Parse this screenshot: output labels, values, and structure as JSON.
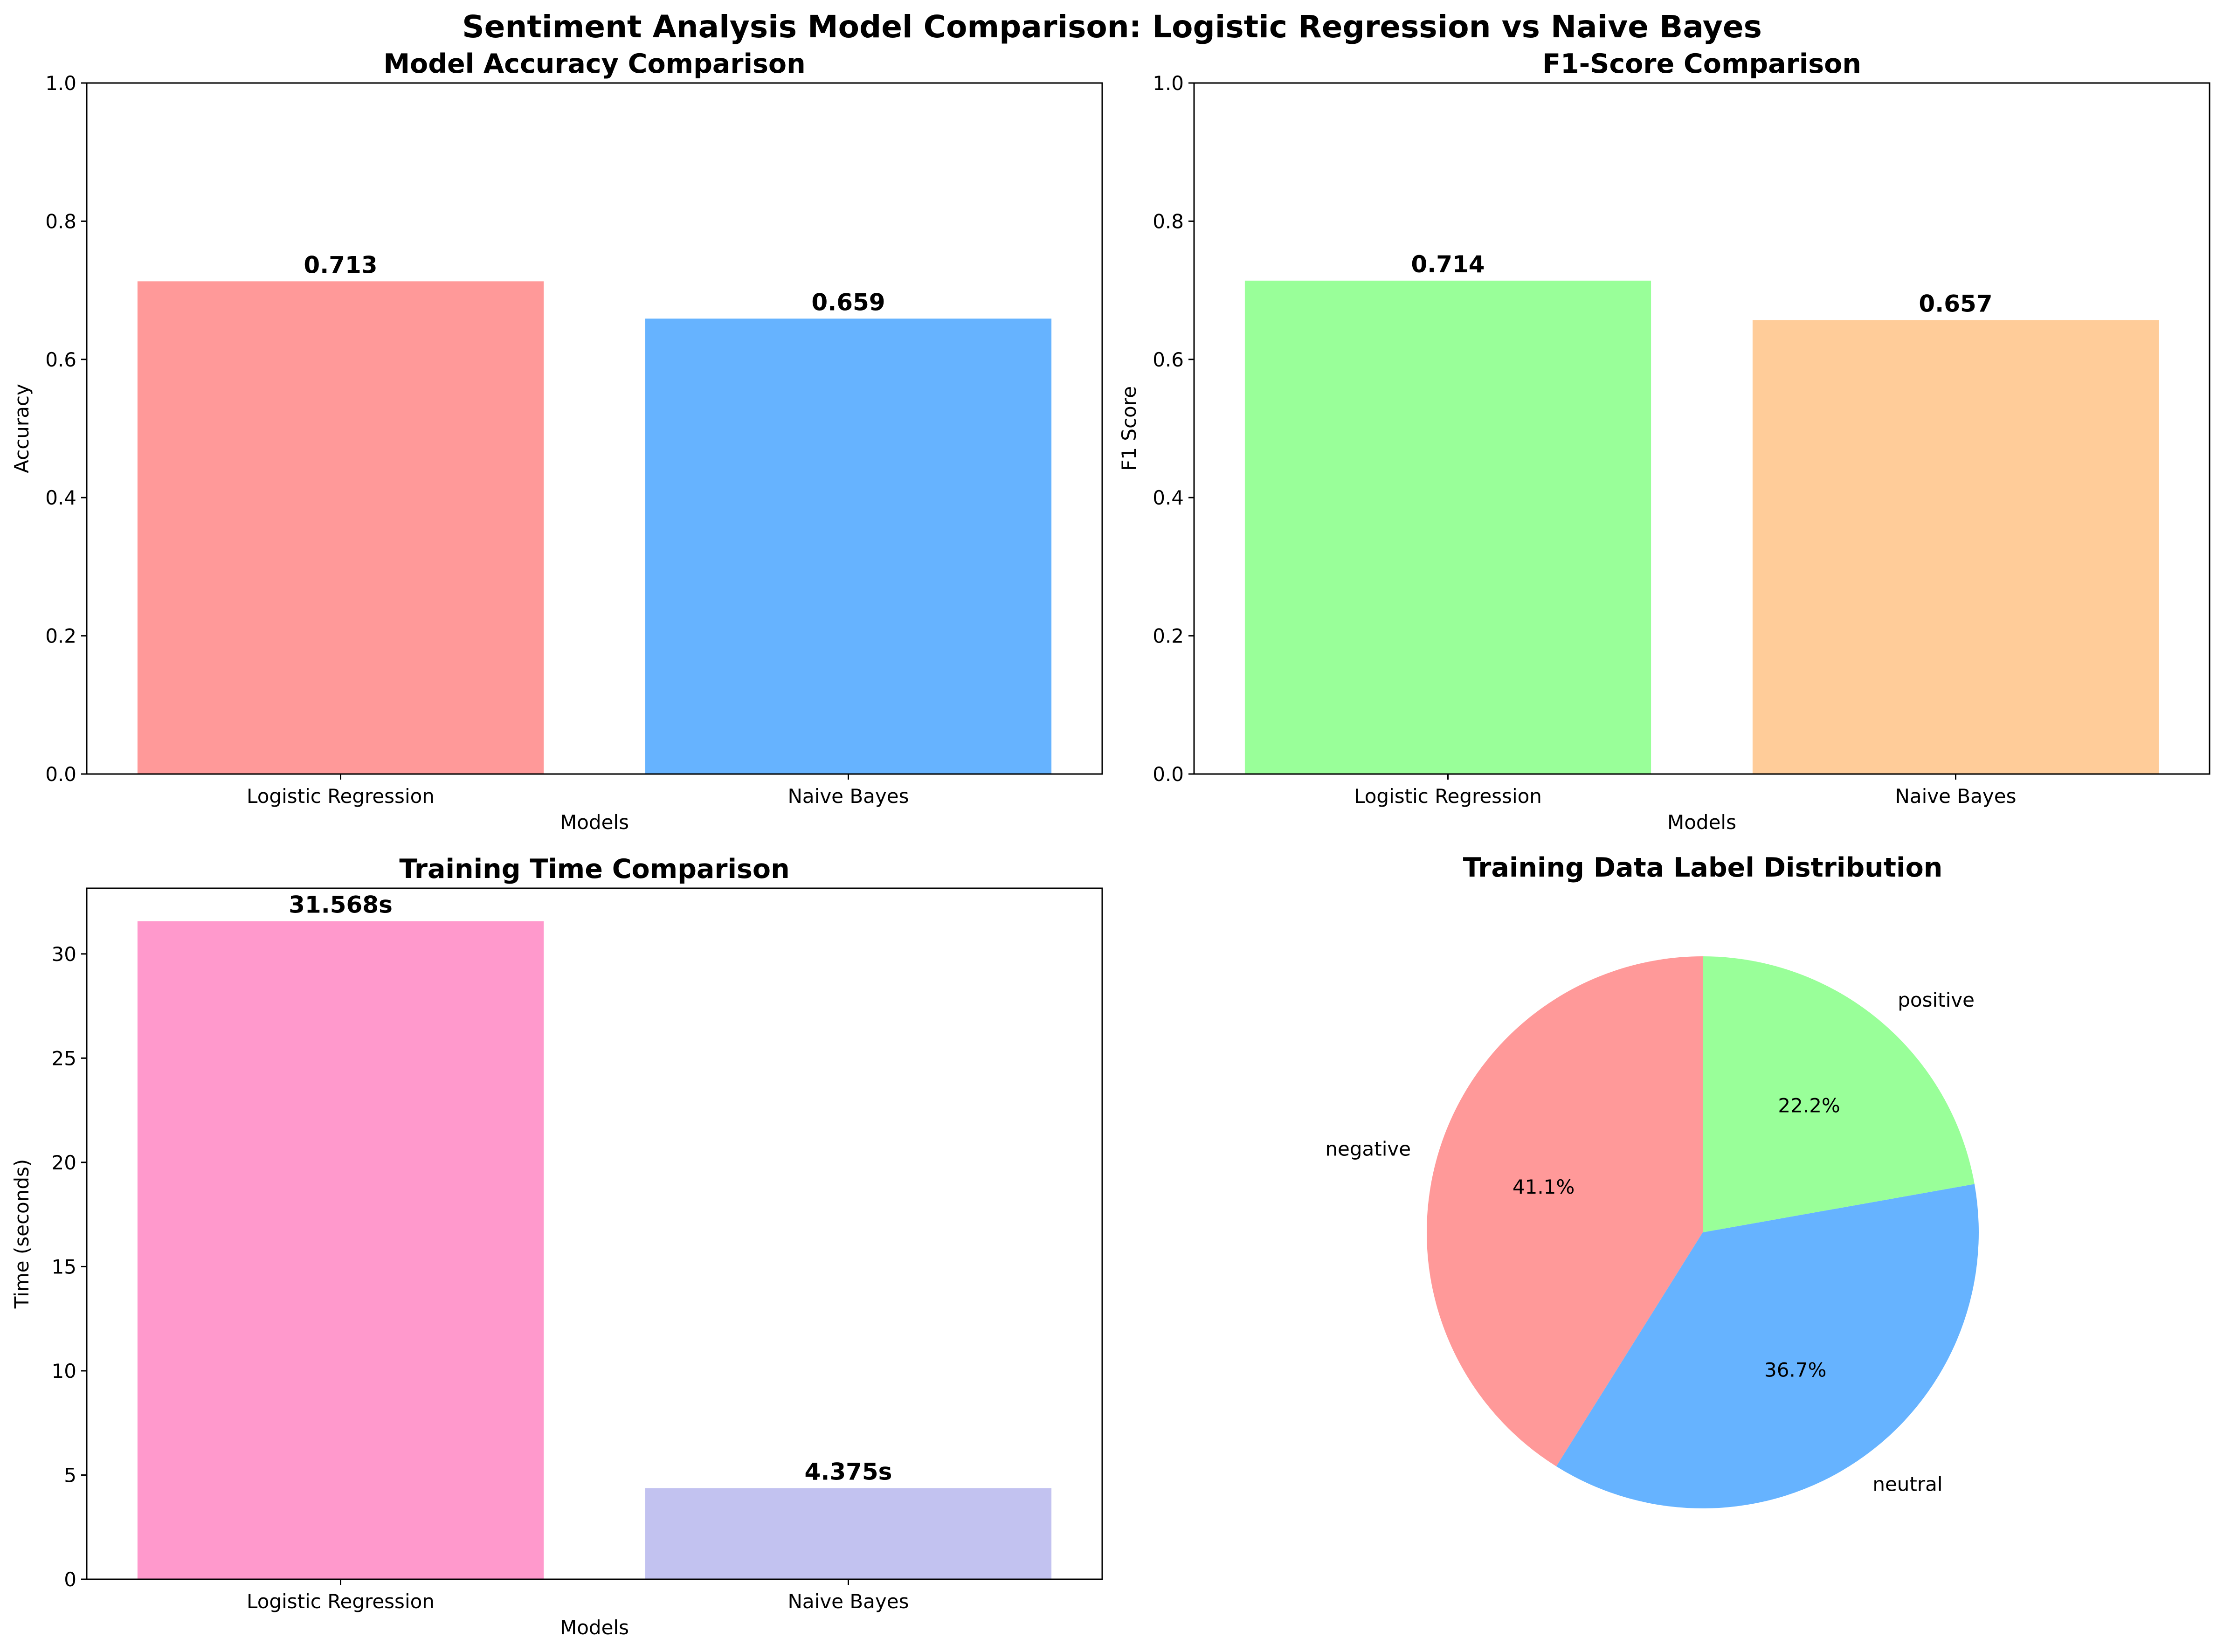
{
  "figure": {
    "suptitle": "Sentiment Analysis Model Comparison: Logistic Regression vs Naive Bayes"
  },
  "chart_data": [
    {
      "type": "bar",
      "title": "Model Accuracy Comparison",
      "xlabel": "Models",
      "ylabel": "Accuracy",
      "categories": [
        "Logistic Regression",
        "Naive Bayes"
      ],
      "values": [
        0.713,
        0.659
      ],
      "value_labels": [
        "0.713",
        "0.659"
      ],
      "colors": [
        "#ff9999",
        "#66b3ff"
      ],
      "ylim": [
        0,
        1.0
      ],
      "yticks": [
        0,
        0.2,
        0.4,
        0.6,
        0.8,
        1.0
      ],
      "ytick_labels": [
        "0.0",
        "0.2",
        "0.4",
        "0.6",
        "0.8",
        "1.0"
      ],
      "grid": false
    },
    {
      "type": "bar",
      "title": "F1-Score Comparison",
      "xlabel": "Models",
      "ylabel": "F1 Score",
      "categories": [
        "Logistic Regression",
        "Naive Bayes"
      ],
      "values": [
        0.714,
        0.657
      ],
      "value_labels": [
        "0.714",
        "0.657"
      ],
      "colors": [
        "#99ff99",
        "#ffcc99"
      ],
      "ylim": [
        0,
        1.0
      ],
      "yticks": [
        0,
        0.2,
        0.4,
        0.6,
        0.8,
        1.0
      ],
      "ytick_labels": [
        "0.0",
        "0.2",
        "0.4",
        "0.6",
        "0.8",
        "1.0"
      ],
      "grid": false
    },
    {
      "type": "bar",
      "title": "Training Time Comparison",
      "xlabel": "Models",
      "ylabel": "Time (seconds)",
      "categories": [
        "Logistic Regression",
        "Naive Bayes"
      ],
      "values": [
        31.568,
        4.375
      ],
      "value_labels": [
        "31.568s",
        "4.375s"
      ],
      "colors": [
        "#ff99cc",
        "#c2c2f0"
      ],
      "ylim": [
        0,
        33.15
      ],
      "yticks": [
        0,
        5,
        10,
        15,
        20,
        25,
        30
      ],
      "ytick_labels": [
        "0",
        "5",
        "10",
        "15",
        "20",
        "25",
        "30"
      ],
      "grid": false
    },
    {
      "type": "pie",
      "title": "Training Data Label Distribution",
      "labels": [
        "negative",
        "neutral",
        "positive"
      ],
      "values": [
        41.1,
        36.7,
        22.2
      ],
      "pct_labels": [
        "41.1%",
        "36.7%",
        "22.2%"
      ],
      "colors": [
        "#ff9999",
        "#66b3ff",
        "#99ff99"
      ],
      "startangle": 90
    }
  ]
}
